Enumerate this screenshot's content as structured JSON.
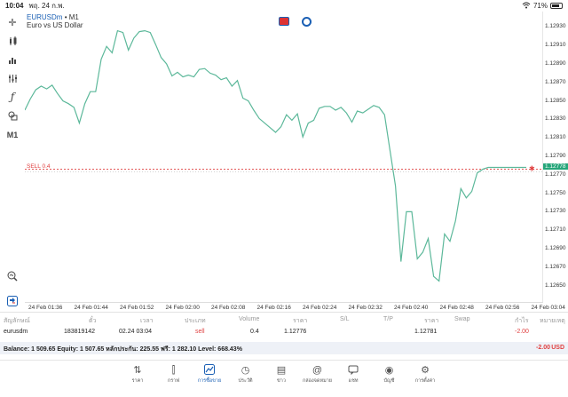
{
  "status_bar": {
    "time": "10:04",
    "date": "พฤ. 24 ก.พ.",
    "battery": "71%",
    "wifi_icon": "wifi-icon",
    "battery_icon": "battery-icon"
  },
  "left_toolbar": [
    {
      "name": "crosshair-icon",
      "glyph": "✛"
    },
    {
      "name": "candles-icon",
      "glyph": "▮"
    },
    {
      "name": "bars-chart-icon",
      "glyph": "▟"
    },
    {
      "name": "indicators-icon",
      "glyph": "⫶"
    },
    {
      "name": "function-icon",
      "glyph": "ƒ"
    },
    {
      "name": "objects-icon",
      "glyph": "◰"
    },
    {
      "name": "timeframe-label",
      "glyph": "M1"
    }
  ],
  "chart": {
    "symbol": "EURUSDm",
    "timeframe": "M1",
    "symbol_suffix": "• M1",
    "description": "Euro vs US Dollar",
    "sell_line_label": "SELL 0.4",
    "current_price_label": "1.12778",
    "accent_color": "#26a67a",
    "line_color": "#5cb89a",
    "sell_color": "#e04040",
    "price_ticks": [
      "1.12930",
      "1.12910",
      "1.12890",
      "1.12870",
      "1.12850",
      "1.12830",
      "1.12810",
      "1.12790",
      "1.12770",
      "1.12750",
      "1.12730",
      "1.12710",
      "1.12690",
      "1.12670",
      "1.12650"
    ],
    "time_ticks": [
      "24 Feb 01:36",
      "24 Feb 01:44",
      "24 Feb 01:52",
      "24 Feb 02:00",
      "24 Feb 02:08",
      "24 Feb 02:16",
      "24 Feb 02:24",
      "24 Feb 02:32",
      "24 Feb 02:40",
      "24 Feb 02:48",
      "24 Feb 02:56",
      "24 Feb 03:04"
    ]
  },
  "chart_data": {
    "type": "line",
    "ylim": [
      1.1264,
      1.1294
    ],
    "x": [
      0,
      1,
      2,
      3,
      4,
      5,
      6,
      7,
      8,
      9,
      10,
      11,
      12,
      13,
      14,
      15,
      16,
      17,
      18,
      19,
      20,
      21,
      22,
      23,
      24,
      25,
      26,
      27,
      28,
      29,
      30,
      31,
      32,
      33,
      34,
      35,
      36,
      37,
      38,
      39,
      40,
      41,
      42,
      43,
      44,
      45,
      46,
      47,
      48,
      49,
      50,
      51,
      52,
      53,
      54,
      55,
      56,
      57,
      58,
      59,
      60,
      61,
      62,
      63,
      64,
      65,
      66,
      67,
      68,
      69,
      70,
      71,
      72,
      73,
      74,
      75,
      76,
      77,
      78,
      79,
      80,
      81,
      82,
      83,
      84,
      85,
      86,
      87,
      88,
      89,
      90,
      91,
      92
    ],
    "values": [
      1.1284,
      1.12852,
      1.12862,
      1.12866,
      1.12863,
      1.12867,
      1.12858,
      1.1285,
      1.12847,
      1.12843,
      1.12826,
      1.12847,
      1.1286,
      1.1286,
      1.12895,
      1.12909,
      1.12902,
      1.12926,
      1.12924,
      1.12905,
      1.12918,
      1.12925,
      1.12926,
      1.12924,
      1.12911,
      1.12897,
      1.1289,
      1.12877,
      1.12881,
      1.12876,
      1.12878,
      1.12876,
      1.12884,
      1.12885,
      1.1288,
      1.12878,
      1.12873,
      1.12875,
      1.12866,
      1.12872,
      1.12853,
      1.1285,
      1.1284,
      1.12831,
      1.12826,
      1.12821,
      1.12816,
      1.12822,
      1.12835,
      1.12829,
      1.12836,
      1.12811,
      1.12826,
      1.12829,
      1.12842,
      1.12844,
      1.12844,
      1.1284,
      1.12843,
      1.12837,
      1.12827,
      1.12839,
      1.12837,
      1.12841,
      1.12845,
      1.12843,
      1.12835,
      1.12796,
      1.12758,
      1.12676,
      1.1273,
      1.1273,
      1.12679,
      1.12686,
      1.12701,
      1.1266,
      1.12655,
      1.12706,
      1.12698,
      1.1272,
      1.12755,
      1.12745,
      1.12752,
      1.12772,
      1.12776,
      1.12778,
      1.12778,
      1.12778,
      1.12778,
      1.12778,
      1.12778,
      1.12778,
      1.12778
    ],
    "horizontal_lines": [
      {
        "label": "SELL 0.4",
        "value": 1.12776
      }
    ],
    "grid": false
  },
  "positions": {
    "headers": [
      "สัญลักษณ์",
      "ตั๋ว",
      "เวลา",
      "ประเภท",
      "Volume",
      "ราคา",
      "S/L",
      "T/P",
      "ราคา",
      "Swap",
      "กำไร",
      "หมายเหตุ"
    ],
    "rows": [
      [
        "eurusdm",
        "183819142",
        "02.24 03:04",
        "sell",
        "0.4",
        "1.12776",
        "",
        "",
        "1.12781",
        "",
        "-2.00",
        ""
      ]
    ]
  },
  "balance": {
    "text": "Balance: 1 509.65 Equity: 1 507.65 หลักประกัน: 225.55 ฟรี: 1 282.10 Level: 668.43%",
    "profit": "-2.00",
    "currency": "USD"
  },
  "tabs": [
    {
      "label": "ราคา",
      "icon": "arrows-updown-icon",
      "glyph": "⇅"
    },
    {
      "label": "กราฟ",
      "icon": "candles-tab-icon",
      "glyph": "⫿"
    },
    {
      "label": "การซื้อขาย",
      "icon": "trade-chart-icon",
      "glyph": "📈",
      "active": true
    },
    {
      "label": "ประวัติ",
      "icon": "history-icon",
      "glyph": "◷"
    },
    {
      "label": "ข่าว",
      "icon": "news-icon",
      "glyph": "▤"
    },
    {
      "label": "กล่องจดหมาย",
      "icon": "mail-icon",
      "glyph": "@"
    },
    {
      "label": "แชท",
      "icon": "chat-icon",
      "glyph": "💬"
    },
    {
      "label": "บัญชี",
      "icon": "account-icon",
      "glyph": "◉"
    },
    {
      "label": "การตั้งค่า",
      "icon": "settings-icon",
      "glyph": "⚙"
    }
  ]
}
